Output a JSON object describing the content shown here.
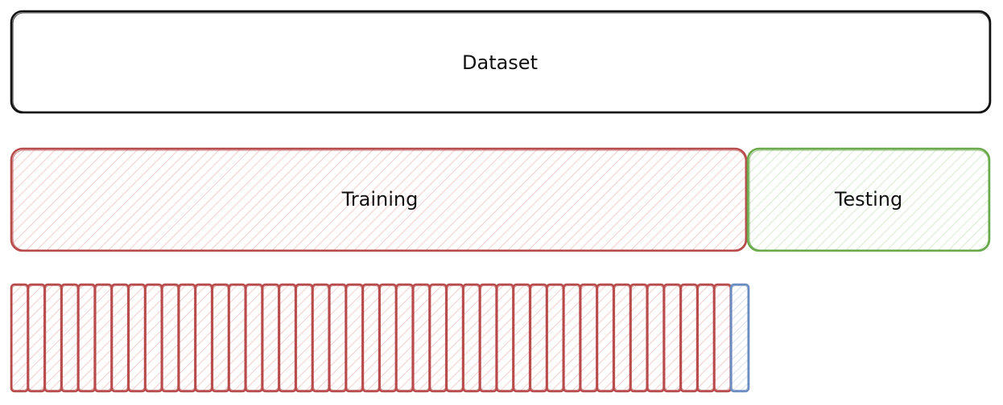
{
  "diagram": {
    "dataset": {
      "label": "Dataset"
    },
    "training": {
      "label": "Training"
    },
    "testing": {
      "label": "Testing"
    },
    "folds": {
      "red_slices": 43,
      "blue_slices": 1
    }
  },
  "colors": {
    "dataset_stroke": "#111111",
    "training_stroke": "#b84b4b",
    "training_fill": "#f4c4c4",
    "testing_stroke": "#6aaa4c",
    "testing_fill": "#cfe7c3",
    "fold_blue_stroke": "#6b8cc0",
    "fold_blue_fill": "#c9d8ef"
  }
}
